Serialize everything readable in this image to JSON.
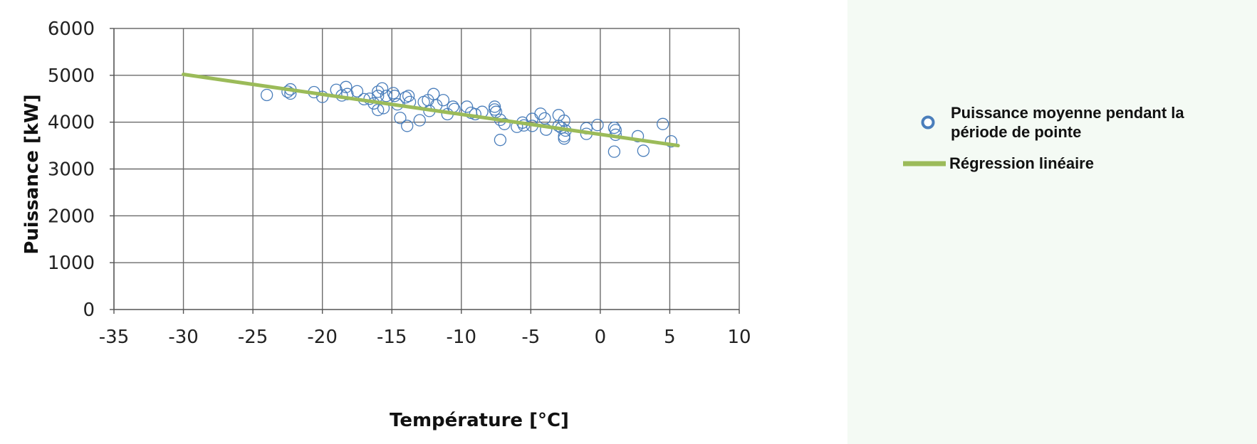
{
  "chart_data": {
    "type": "scatter",
    "xlabel": "Température [°C]",
    "ylabel": "Puissance [kW]",
    "xlim": [
      -35,
      10
    ],
    "ylim": [
      0,
      6000
    ],
    "x_ticks": [
      -35,
      -30,
      -25,
      -20,
      -15,
      -10,
      -5,
      0,
      5,
      10
    ],
    "y_ticks": [
      0,
      1000,
      2000,
      3000,
      4000,
      5000,
      6000
    ],
    "grid": true,
    "legend_position": "right",
    "series": [
      {
        "name": "Puissance moyenne pendant la période de pointe",
        "type": "scatter",
        "color": "#4a7ebb",
        "points": [
          [
            -24,
            4580
          ],
          [
            -22.5,
            4650
          ],
          [
            -22.3,
            4700
          ],
          [
            -22.3,
            4610
          ],
          [
            -20.6,
            4640
          ],
          [
            -20,
            4540
          ],
          [
            -19,
            4690
          ],
          [
            -18.6,
            4570
          ],
          [
            -18.3,
            4750
          ],
          [
            -18.2,
            4600
          ],
          [
            -17.5,
            4660
          ],
          [
            -17,
            4490
          ],
          [
            -16.6,
            4500
          ],
          [
            -16.3,
            4400
          ],
          [
            -16,
            4650
          ],
          [
            -16,
            4560
          ],
          [
            -16,
            4260
          ],
          [
            -15.7,
            4720
          ],
          [
            -15.6,
            4300
          ],
          [
            -15.4,
            4560
          ],
          [
            -14.9,
            4620
          ],
          [
            -14.8,
            4560
          ],
          [
            -14.6,
            4380
          ],
          [
            -14.4,
            4090
          ],
          [
            -14,
            4530
          ],
          [
            -13.9,
            3920
          ],
          [
            -13.8,
            4560
          ],
          [
            -13.7,
            4430
          ],
          [
            -13,
            4040
          ],
          [
            -12.7,
            4430
          ],
          [
            -12.4,
            4470
          ],
          [
            -12.3,
            4240
          ],
          [
            -12,
            4600
          ],
          [
            -11.8,
            4360
          ],
          [
            -11.3,
            4470
          ],
          [
            -11,
            4170
          ],
          [
            -10.6,
            4330
          ],
          [
            -10.5,
            4280
          ],
          [
            -9.6,
            4330
          ],
          [
            -9.3,
            4200
          ],
          [
            -9,
            4170
          ],
          [
            -8.5,
            4220
          ],
          [
            -7.6,
            4330
          ],
          [
            -7.6,
            4270
          ],
          [
            -7.5,
            4220
          ],
          [
            -7.2,
            4050
          ],
          [
            -7.2,
            3620
          ],
          [
            -6.9,
            3960
          ],
          [
            -6,
            3900
          ],
          [
            -5.6,
            3990
          ],
          [
            -5.5,
            3930
          ],
          [
            -4.9,
            4070
          ],
          [
            -4.9,
            3920
          ],
          [
            -4.3,
            4180
          ],
          [
            -4,
            4080
          ],
          [
            -3.9,
            3840
          ],
          [
            -3,
            4150
          ],
          [
            -3,
            3920
          ],
          [
            -2.8,
            3880
          ],
          [
            -2.6,
            4030
          ],
          [
            -2.6,
            3700
          ],
          [
            -2.6,
            3650
          ],
          [
            -2.5,
            3820
          ],
          [
            -1,
            3870
          ],
          [
            -1,
            3750
          ],
          [
            -0.2,
            3940
          ],
          [
            1,
            3880
          ],
          [
            1.1,
            3830
          ],
          [
            1.1,
            3730
          ],
          [
            1,
            3370
          ],
          [
            2.7,
            3700
          ],
          [
            3.1,
            3390
          ],
          [
            4.5,
            3960
          ],
          [
            5.1,
            3590
          ]
        ]
      },
      {
        "name": "Régression linéaire",
        "type": "line",
        "color": "#9bbb59",
        "points": [
          [
            -30,
            5020
          ],
          [
            5.6,
            3500
          ]
        ]
      }
    ]
  }
}
